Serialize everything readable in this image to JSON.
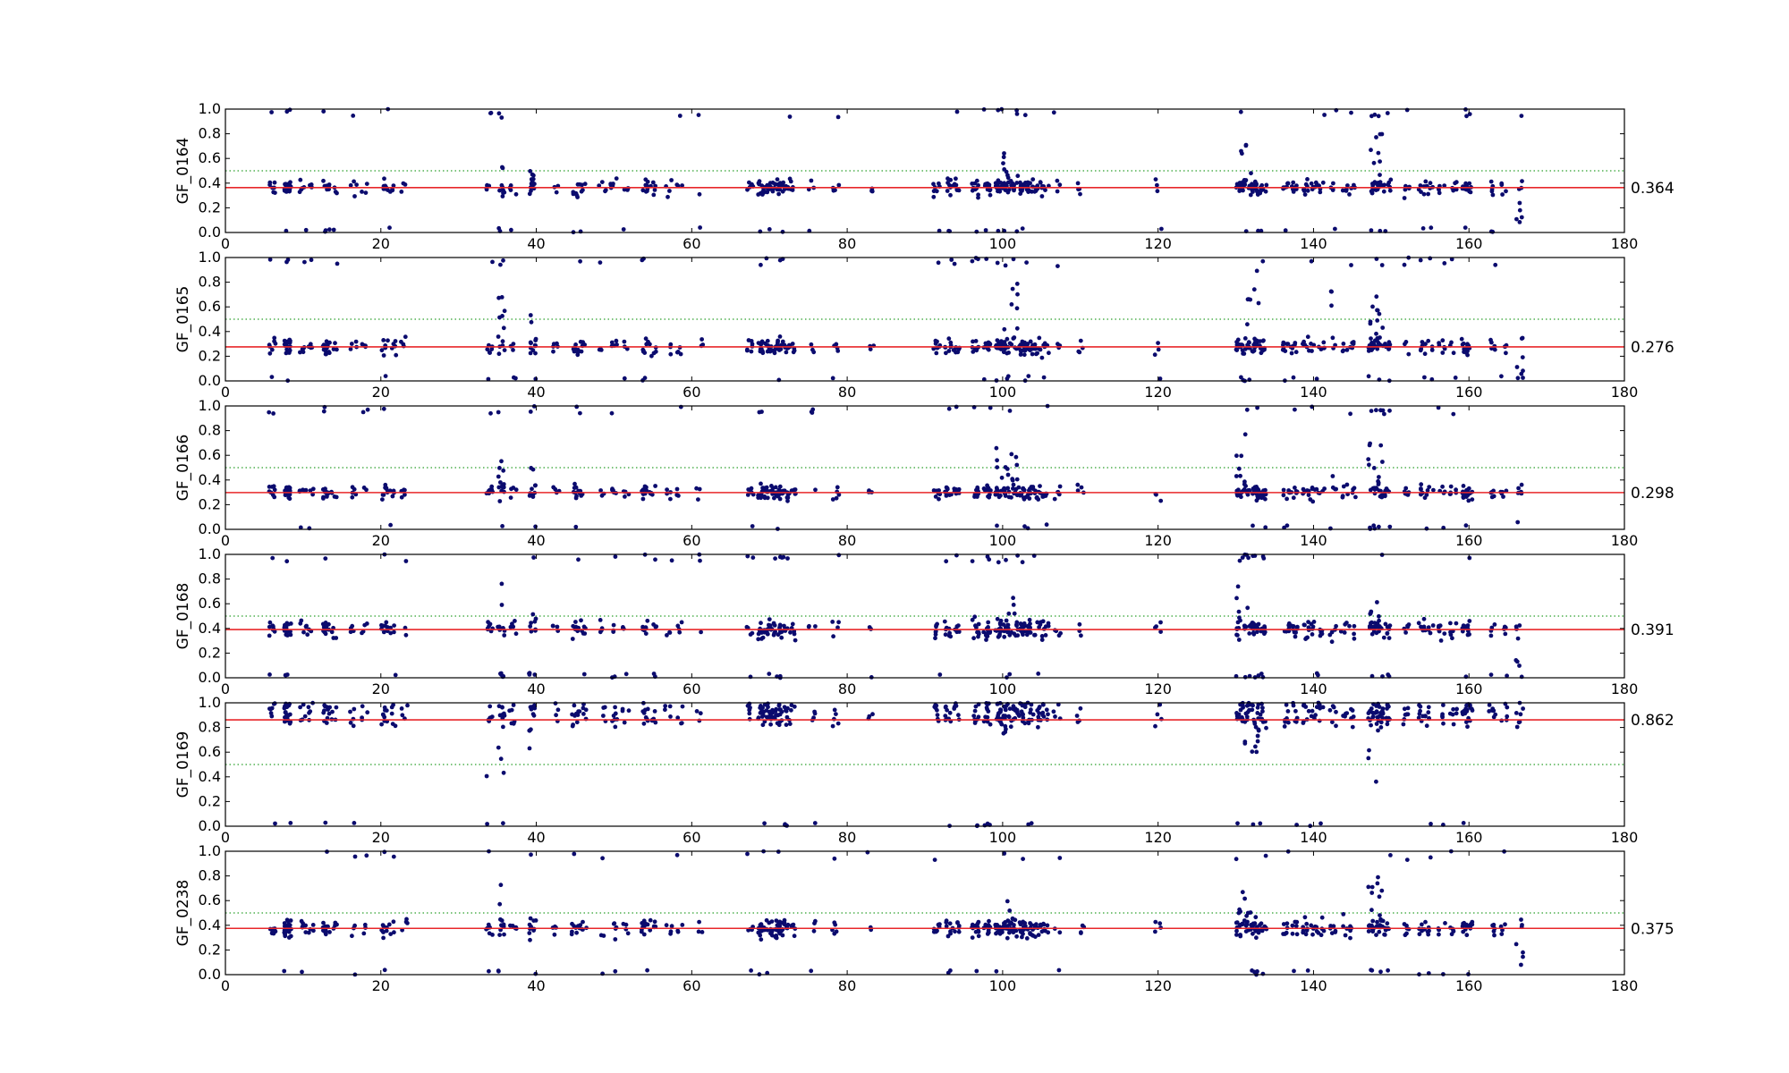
{
  "colors": {
    "points": "#0b0b6e",
    "mean_line": "#e8272a",
    "threshold_line": "#2ca02c",
    "axes": "#000000"
  },
  "chart_data": [
    {
      "type": "scatter",
      "ylabel": "GF_0164",
      "mean": 0.364,
      "mean_label": "0.364",
      "threshold": 0.5,
      "xlim": [
        0,
        180
      ],
      "ylim": [
        0,
        1.0
      ],
      "xticks": [
        "0",
        "20",
        "40",
        "60",
        "80",
        "100",
        "120",
        "140",
        "160",
        "180"
      ],
      "yticks": [
        "0.0",
        "0.2",
        "0.4",
        "0.6",
        "0.8",
        "1.0"
      ],
      "spread": 0.06,
      "outlier_rate": 0.12,
      "trailing_low": true,
      "bursts": [
        [
          35.5,
          0.7
        ],
        [
          40,
          0.5
        ],
        [
          101,
          0.65
        ],
        [
          131,
          0.75
        ],
        [
          148,
          0.8
        ]
      ]
    },
    {
      "type": "scatter",
      "ylabel": "GF_0165",
      "mean": 0.276,
      "mean_label": "0.276",
      "threshold": 0.5,
      "xlim": [
        0,
        180
      ],
      "ylim": [
        0,
        1.0
      ],
      "xticks": [
        "0",
        "20",
        "40",
        "60",
        "80",
        "100",
        "120",
        "140",
        "160",
        "180"
      ],
      "yticks": [
        "0.0",
        "0.2",
        "0.4",
        "0.6",
        "0.8",
        "1.0"
      ],
      "spread": 0.06,
      "outlier_rate": 0.11,
      "trailing_low": true,
      "bursts": [
        [
          35.5,
          0.7
        ],
        [
          39.5,
          0.6
        ],
        [
          101,
          0.8
        ],
        [
          132,
          0.9
        ],
        [
          148,
          0.7
        ],
        [
          143,
          0.75
        ]
      ]
    },
    {
      "type": "scatter",
      "ylabel": "GF_0166",
      "mean": 0.298,
      "mean_label": "0.298",
      "threshold": 0.5,
      "xlim": [
        0,
        180
      ],
      "ylim": [
        0,
        1.0
      ],
      "xticks": [
        "0",
        "20",
        "40",
        "60",
        "80",
        "100",
        "120",
        "140",
        "160",
        "180"
      ],
      "yticks": [
        "0.0",
        "0.2",
        "0.4",
        "0.6",
        "0.8",
        "1.0"
      ],
      "spread": 0.055,
      "outlier_rate": 0.11,
      "trailing_low": true,
      "bursts": [
        [
          35.5,
          0.72
        ],
        [
          39.5,
          0.55
        ],
        [
          100.5,
          0.68
        ],
        [
          131,
          0.8
        ],
        [
          148,
          0.8
        ],
        [
          142,
          0.75
        ]
      ]
    },
    {
      "type": "scatter",
      "ylabel": "GF_0168",
      "mean": 0.391,
      "mean_label": "0.391",
      "threshold": 0.5,
      "xlim": [
        0,
        180
      ],
      "ylim": [
        0,
        1.0
      ],
      "xticks": [
        "0",
        "20",
        "40",
        "60",
        "80",
        "100",
        "120",
        "140",
        "160",
        "180"
      ],
      "yticks": [
        "0.0",
        "0.2",
        "0.4",
        "0.6",
        "0.8",
        "1.0"
      ],
      "spread": 0.07,
      "outlier_rate": 0.13,
      "trailing_low": true,
      "bursts": [
        [
          35.5,
          0.8
        ],
        [
          39.5,
          0.62
        ],
        [
          101,
          0.65
        ],
        [
          131,
          0.85
        ],
        [
          148,
          0.8
        ]
      ]
    },
    {
      "type": "scatter",
      "ylabel": "GF_0169",
      "mean": 0.862,
      "mean_label": "0.862",
      "threshold": 0.5,
      "xlim": [
        0,
        180
      ],
      "ylim": [
        0,
        1.0
      ],
      "xticks": [
        "0",
        "20",
        "40",
        "60",
        "80",
        "100",
        "120",
        "140",
        "160",
        "180"
      ],
      "yticks": [
        "0.0",
        "0.2",
        "0.4",
        "0.6",
        "0.8",
        "1.0"
      ],
      "spread": 0.05,
      "outlier_rate": 0.08,
      "trailing_low": false,
      "bursts": [
        [
          34.5,
          0.2
        ],
        [
          39.5,
          0.6
        ],
        [
          101,
          0.75
        ],
        [
          132,
          0.6
        ],
        [
          148,
          0.35
        ]
      ]
    },
    {
      "type": "scatter",
      "ylabel": "GF_0238",
      "mean": 0.375,
      "mean_label": "0.375",
      "threshold": 0.5,
      "xlim": [
        0,
        180
      ],
      "ylim": [
        0,
        1.0
      ],
      "xticks": [
        "0",
        "20",
        "40",
        "60",
        "80",
        "100",
        "120",
        "140",
        "160",
        "180"
      ],
      "yticks": [
        "0.0",
        "0.2",
        "0.4",
        "0.6",
        "0.8",
        "1.0"
      ],
      "spread": 0.07,
      "outlier_rate": 0.12,
      "trailing_low": true,
      "bursts": [
        [
          35.5,
          0.8
        ],
        [
          40,
          0.5
        ],
        [
          101,
          0.6
        ],
        [
          131,
          0.7
        ],
        [
          148,
          0.8
        ],
        [
          144,
          0.65
        ]
      ]
    }
  ]
}
